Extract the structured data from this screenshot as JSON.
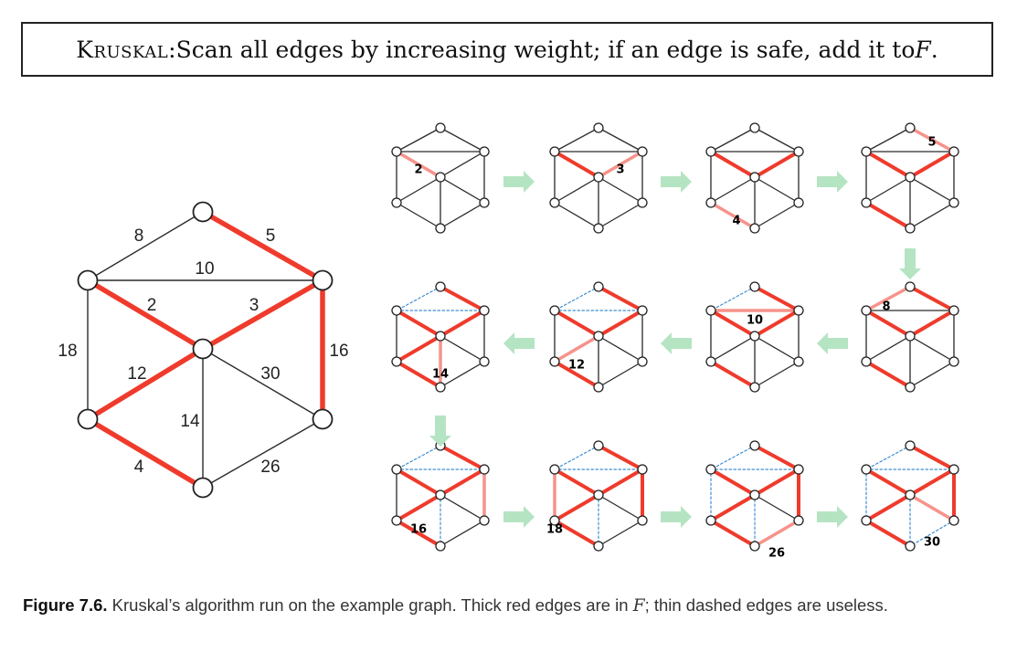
{
  "header": {
    "algorithm": "Kruskal",
    "sep": ": ",
    "text": "Scan all edges by increasing weight; if an edge is safe, add it to ",
    "var": "F",
    "end": "."
  },
  "caption": {
    "fig": "Figure 7.6.",
    "text1": " Kruskal’s algorithm run on the example graph. Thick red edges are in ",
    "var": "F",
    "text2": "; thin dashed edges are useless."
  },
  "graph": {
    "edges": [
      {
        "a": 0,
        "b": 1,
        "w": "8"
      },
      {
        "a": 0,
        "b": 2,
        "w": "5"
      },
      {
        "a": 1,
        "b": 2,
        "w": "10"
      },
      {
        "a": 1,
        "b": 3,
        "w": "2"
      },
      {
        "a": 2,
        "b": 3,
        "w": "3"
      },
      {
        "a": 1,
        "b": 4,
        "w": "18"
      },
      {
        "a": 2,
        "b": 5,
        "w": "16"
      },
      {
        "a": 3,
        "b": 4,
        "w": "12"
      },
      {
        "a": 3,
        "b": 5,
        "w": "30"
      },
      {
        "a": 3,
        "b": 6,
        "w": "14"
      },
      {
        "a": 4,
        "b": 6,
        "w": "4"
      },
      {
        "a": 5,
        "b": 6,
        "w": "26"
      }
    ],
    "big_state": [
      "n",
      "r",
      "n",
      "r",
      "r",
      "n",
      "r",
      "r",
      "n",
      "n",
      "r",
      "n"
    ]
  },
  "steps": [
    {
      "state": [
        "n",
        "n",
        "n",
        "c",
        "n",
        "n",
        "n",
        "n",
        "n",
        "n",
        "n",
        "n"
      ],
      "label": "2",
      "edge": 3
    },
    {
      "state": [
        "n",
        "n",
        "n",
        "r",
        "c",
        "n",
        "n",
        "n",
        "n",
        "n",
        "n",
        "n"
      ],
      "label": "3",
      "edge": 4
    },
    {
      "state": [
        "n",
        "n",
        "n",
        "r",
        "r",
        "n",
        "n",
        "n",
        "n",
        "n",
        "c",
        "n"
      ],
      "label": "4",
      "edge": 10
    },
    {
      "state": [
        "n",
        "c",
        "n",
        "r",
        "r",
        "n",
        "n",
        "n",
        "n",
        "n",
        "r",
        "n"
      ],
      "label": "5",
      "edge": 1
    },
    {
      "state": [
        "c",
        "r",
        "n",
        "r",
        "r",
        "n",
        "n",
        "n",
        "n",
        "n",
        "r",
        "n"
      ],
      "label": "8",
      "edge": 0
    },
    {
      "state": [
        "d",
        "r",
        "c",
        "r",
        "r",
        "n",
        "n",
        "n",
        "n",
        "n",
        "r",
        "n"
      ],
      "label": "10",
      "edge": 2
    },
    {
      "state": [
        "d",
        "r",
        "d",
        "r",
        "r",
        "n",
        "n",
        "c",
        "n",
        "n",
        "r",
        "n"
      ],
      "label": "12",
      "edge": 7
    },
    {
      "state": [
        "d",
        "r",
        "d",
        "r",
        "r",
        "n",
        "n",
        "r",
        "n",
        "c",
        "r",
        "n"
      ],
      "label": "14",
      "edge": 9
    },
    {
      "state": [
        "d",
        "r",
        "d",
        "r",
        "r",
        "n",
        "c",
        "r",
        "n",
        "d",
        "r",
        "n"
      ],
      "label": "16",
      "edge": 6
    },
    {
      "state": [
        "d",
        "r",
        "d",
        "r",
        "r",
        "c",
        "r",
        "r",
        "n",
        "d",
        "r",
        "n"
      ],
      "label": "18",
      "edge": 5
    },
    {
      "state": [
        "d",
        "r",
        "d",
        "r",
        "r",
        "d",
        "r",
        "r",
        "n",
        "d",
        "r",
        "c"
      ],
      "label": "26",
      "edge": 11
    },
    {
      "state": [
        "d",
        "r",
        "d",
        "r",
        "r",
        "d",
        "r",
        "r",
        "c",
        "d",
        "r",
        "d"
      ],
      "label": "30",
      "edge": 8
    }
  ]
}
